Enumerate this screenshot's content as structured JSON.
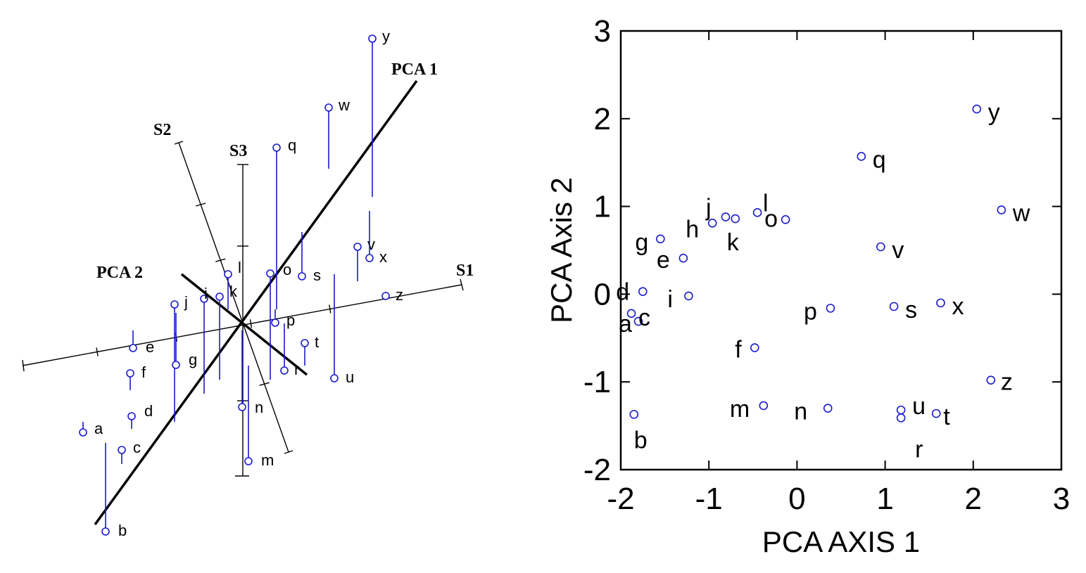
{
  "chart_data": [
    {
      "type": "scatter",
      "title": "",
      "axes3d": [
        {
          "label": "S1"
        },
        {
          "label": "S2"
        },
        {
          "label": "S3"
        },
        {
          "label": "PCA 1"
        },
        {
          "label": "PCA 2"
        }
      ],
      "points": [
        {
          "label": "y"
        },
        {
          "label": "w"
        },
        {
          "label": "q"
        },
        {
          "label": "v"
        },
        {
          "label": "x"
        },
        {
          "label": "z"
        },
        {
          "label": "s"
        },
        {
          "label": "o"
        },
        {
          "label": "l"
        },
        {
          "label": "k"
        },
        {
          "label": "j"
        },
        {
          "label": "p"
        },
        {
          "label": "t"
        },
        {
          "label": "r"
        },
        {
          "label": "u"
        },
        {
          "label": "e"
        },
        {
          "label": "f"
        },
        {
          "label": "g"
        },
        {
          "label": "d"
        },
        {
          "label": "i"
        },
        {
          "label": "n"
        },
        {
          "label": "a"
        },
        {
          "label": "c"
        },
        {
          "label": "m"
        },
        {
          "label": "b"
        }
      ],
      "colors": {
        "point": "#1a1acc",
        "axis": "#000000"
      }
    },
    {
      "type": "scatter",
      "title": "",
      "xlabel": "PCA AXIS 1",
      "ylabel": "PCA Axis 2",
      "xlim": [
        -2,
        3
      ],
      "ylim": [
        -2,
        3
      ],
      "xticks": [
        -2,
        -1,
        0,
        1,
        2,
        3
      ],
      "yticks": [
        -2,
        -1,
        0,
        1,
        2,
        3
      ],
      "grid": false,
      "marker": "open-circle",
      "colors": {
        "point": "#1a1acc",
        "axis": "#000000"
      },
      "series": [
        {
          "points": [
            {
              "label": "a",
              "x": -1.88,
              "y": -0.22
            },
            {
              "label": "b",
              "x": -1.85,
              "y": -1.37
            },
            {
              "label": "c",
              "x": -1.8,
              "y": -0.31
            },
            {
              "label": "d",
              "x": -1.75,
              "y": 0.03
            },
            {
              "label": "e",
              "x": -1.29,
              "y": 0.41
            },
            {
              "label": "f",
              "x": -0.48,
              "y": -0.61
            },
            {
              "label": "g",
              "x": -1.55,
              "y": 0.63
            },
            {
              "label": "h",
              "x": -0.96,
              "y": 0.81
            },
            {
              "label": "i",
              "x": -1.23,
              "y": -0.02
            },
            {
              "label": "j",
              "x": -0.81,
              "y": 0.88
            },
            {
              "label": "k",
              "x": -0.7,
              "y": 0.86
            },
            {
              "label": "l",
              "x": -0.45,
              "y": 0.93
            },
            {
              "label": "m",
              "x": -0.38,
              "y": -1.27
            },
            {
              "label": "n",
              "x": 0.35,
              "y": -1.3
            },
            {
              "label": "o",
              "x": -0.13,
              "y": 0.85
            },
            {
              "label": "p",
              "x": 0.38,
              "y": -0.16
            },
            {
              "label": "q",
              "x": 0.73,
              "y": 1.57
            },
            {
              "label": "r",
              "x": 1.18,
              "y": -1.41
            },
            {
              "label": "s",
              "x": 1.1,
              "y": -0.14
            },
            {
              "label": "t",
              "x": 1.58,
              "y": -1.36
            },
            {
              "label": "u",
              "x": 1.18,
              "y": -1.32
            },
            {
              "label": "v",
              "x": 0.95,
              "y": 0.54
            },
            {
              "label": "w",
              "x": 2.32,
              "y": 0.96
            },
            {
              "label": "x",
              "x": 1.63,
              "y": -0.1
            },
            {
              "label": "y",
              "x": 2.04,
              "y": 2.11
            },
            {
              "label": "z",
              "x": 2.2,
              "y": -0.98
            }
          ]
        }
      ]
    }
  ]
}
